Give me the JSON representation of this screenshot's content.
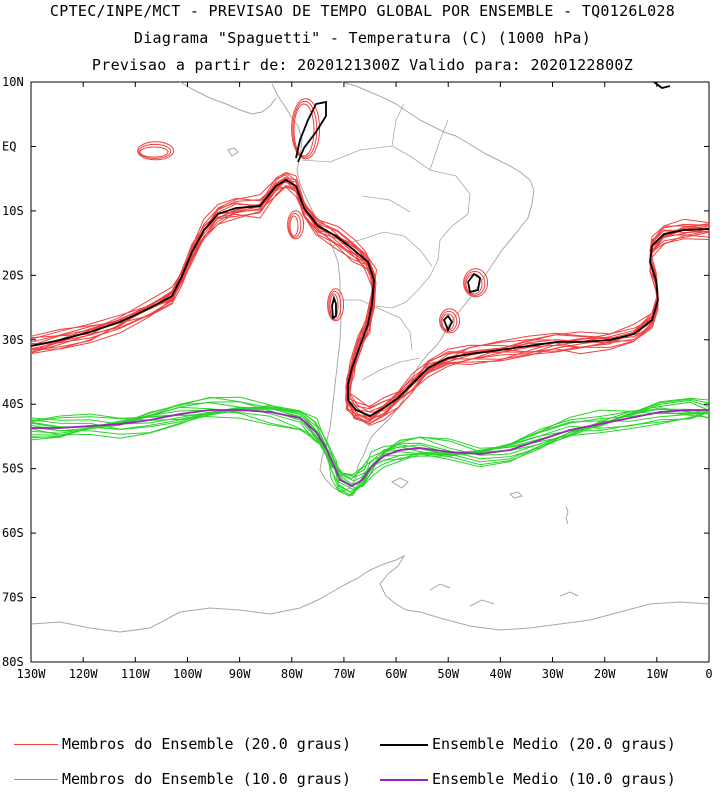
{
  "titles": {
    "line1": "CPTEC/INPE/MCT - PREVISAO DE TEMPO GLOBAL POR ENSEMBLE - TQ0126L028",
    "line2": "Diagrama \"Spaguetti\" - Temperatura (C) (1000 hPa)",
    "line3": "Previsao a partir de: 2020121300Z  Valido para: 2020122800Z"
  },
  "axes": {
    "lat_labels": [
      "10N",
      "EQ",
      "10S",
      "20S",
      "30S",
      "40S",
      "50S",
      "60S",
      "70S",
      "80S"
    ],
    "lon_labels": [
      "130W",
      "120W",
      "110W",
      "100W",
      "90W",
      "80W",
      "70W",
      "60W",
      "50W",
      "40W",
      "30W",
      "20W",
      "10W",
      "0"
    ]
  },
  "legend": [
    {
      "label": "Membros do Ensemble (20.0 graus)",
      "color": "#f04040"
    },
    {
      "label": "Ensemble Medio (20.0 graus)",
      "color": "#000000"
    },
    {
      "label": "Membros do Ensemble (10.0 graus)",
      "color": "#2ad42a"
    },
    {
      "label": "Ensemble Medio (10.0 graus)",
      "color": "#a020c0"
    }
  ],
  "colors": {
    "coast": "#a8a8a8",
    "member20": "#f04040",
    "mean20": "#000000",
    "member10": "#2ad42a",
    "mean10": "#a020c0"
  }
}
